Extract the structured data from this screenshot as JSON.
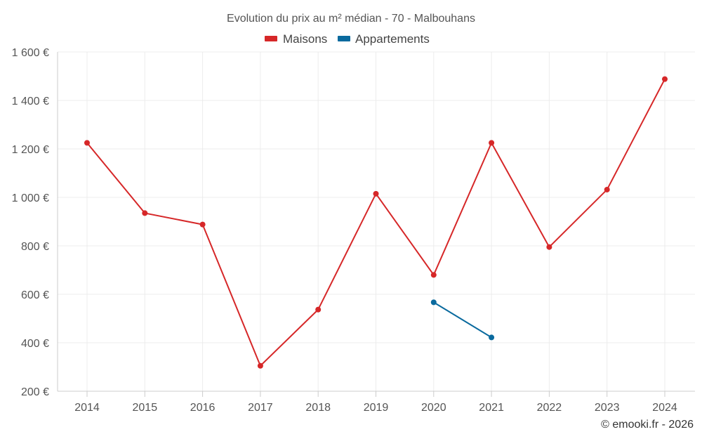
{
  "chart_data": {
    "type": "line",
    "title": "Evolution du prix au m² médian - 70 - Malbouhans",
    "categories": [
      "2014",
      "2015",
      "2016",
      "2017",
      "2018",
      "2019",
      "2020",
      "2021",
      "2022",
      "2023",
      "2024"
    ],
    "series": [
      {
        "name": "Maisons",
        "color": "#d62728",
        "values": [
          1225,
          935,
          888,
          305,
          537,
          1015,
          680,
          1225,
          795,
          1032,
          1488
        ]
      },
      {
        "name": "Appartements",
        "color": "#0a6a9e",
        "values": [
          null,
          null,
          null,
          null,
          null,
          null,
          567,
          422,
          null,
          null,
          null
        ]
      }
    ],
    "ylim": [
      200,
      1600
    ],
    "yticks": [
      200,
      400,
      600,
      800,
      1000,
      1200,
      1400,
      1600
    ],
    "ytick_labels": [
      "200 €",
      "400 €",
      "600 €",
      "800 €",
      "1 000 €",
      "1 200 €",
      "1 400 €",
      "1 600 €"
    ],
    "grid": true,
    "legend_position": "top-center"
  },
  "credit": "© emooki.fr - 2026"
}
